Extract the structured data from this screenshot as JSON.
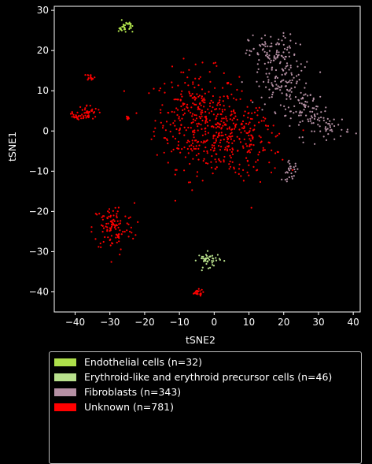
{
  "chart_data": {
    "type": "scatter",
    "title": "",
    "xlabel": "tSNE2",
    "ylabel": "tSNE1",
    "xlim": [
      -46,
      42
    ],
    "ylim": [
      -45,
      31
    ],
    "xticks": [
      -40,
      -30,
      -20,
      -10,
      0,
      10,
      20,
      30,
      40
    ],
    "yticks": [
      -40,
      -30,
      -20,
      -10,
      0,
      10,
      20,
      30
    ],
    "x_tick_labels": [
      "−40",
      "−30",
      "−20",
      "−10",
      "0",
      "10",
      "20",
      "30",
      "40"
    ],
    "y_tick_labels": [
      "−40",
      "−30",
      "−20",
      "−10",
      "0",
      "10",
      "20",
      "30"
    ],
    "grid": false,
    "legend_position": "below",
    "series": [
      {
        "name": "Endothelial cells (n=32)",
        "color": "#aee04b",
        "n": 32,
        "clusters": [
          {
            "cx": -25.5,
            "cy": 25.8,
            "sx": 1.0,
            "sy": 0.8,
            "n": 32
          }
        ]
      },
      {
        "name": "Erythroid-like and erythroid precursor cells (n=46)",
        "color": "#b8e08c",
        "n": 46,
        "clusters": [
          {
            "cx": -1.5,
            "cy": -32.0,
            "sx": 1.6,
            "sy": 0.9,
            "n": 46
          }
        ]
      },
      {
        "name": "Fibroblasts (n=343)",
        "color": "#b590a4",
        "n": 343,
        "clusters": [
          {
            "cx": 17.0,
            "cy": 19.0,
            "sx": 3.5,
            "sy": 2.5,
            "n": 110
          },
          {
            "cx": 20.0,
            "cy": 11.0,
            "sx": 4.0,
            "sy": 3.0,
            "n": 100
          },
          {
            "cx": 27.0,
            "cy": 5.0,
            "sx": 3.0,
            "sy": 2.5,
            "n": 60
          },
          {
            "cx": 33.0,
            "cy": 1.0,
            "sx": 3.0,
            "sy": 1.5,
            "n": 45
          },
          {
            "cx": 22.0,
            "cy": -10.0,
            "sx": 1.2,
            "sy": 1.2,
            "n": 28
          }
        ]
      },
      {
        "name": "Unknown (n=781)",
        "color": "#ff0000",
        "n": 781,
        "clusters": [
          {
            "cx": -5.0,
            "cy": 3.0,
            "sx": 6.0,
            "sy": 6.0,
            "n": 320
          },
          {
            "cx": 5.0,
            "cy": -2.0,
            "sx": 5.0,
            "sy": 5.0,
            "n": 180
          },
          {
            "cx": 13.0,
            "cy": -3.0,
            "sx": 4.0,
            "sy": 4.0,
            "n": 60
          },
          {
            "cx": -29.0,
            "cy": -24.0,
            "sx": 3.0,
            "sy": 3.0,
            "n": 110
          },
          {
            "cx": -36.5,
            "cy": 4.5,
            "sx": 1.5,
            "sy": 1.0,
            "n": 45
          },
          {
            "cx": -35.5,
            "cy": 13.5,
            "sx": 0.6,
            "sy": 0.4,
            "n": 15
          },
          {
            "cx": -25.0,
            "cy": 3.2,
            "sx": 0.3,
            "sy": 0.3,
            "n": 10
          },
          {
            "cx": -5.0,
            "cy": -40.2,
            "sx": 0.9,
            "sy": 0.4,
            "n": 25
          },
          {
            "cx": -40.0,
            "cy": 3.5,
            "sx": 1.0,
            "sy": 0.5,
            "n": 16
          }
        ]
      }
    ]
  }
}
